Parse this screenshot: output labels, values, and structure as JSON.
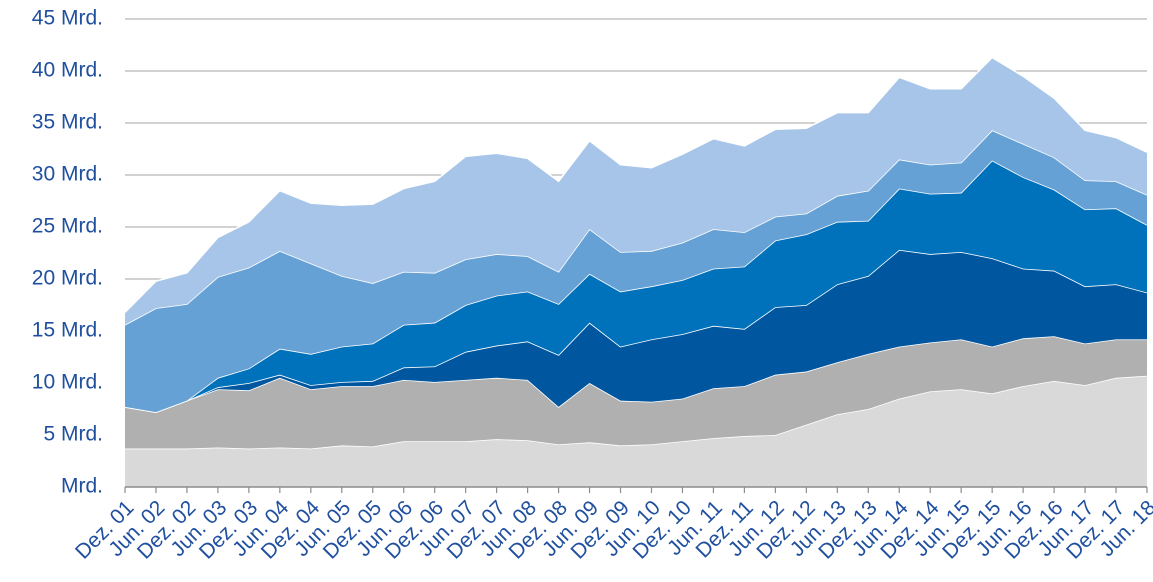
{
  "chart_data": {
    "type": "stacked-area",
    "categories": [
      "Dez. 01",
      "Jun. 02",
      "Dez. 02",
      "Jun. 03",
      "Dez. 03",
      "Jun. 04",
      "Dez. 04",
      "Jun. 05",
      "Dez. 05",
      "Jun. 06",
      "Dez. 06",
      "Jun. 07",
      "Dez. 07",
      "Jun. 08",
      "Dez. 08",
      "Jun. 09",
      "Dez. 09",
      "Jun. 10",
      "Dez. 10",
      "Jun. 11",
      "Dez. 11",
      "Jun. 12",
      "Dez. 12",
      "Jun. 13",
      "Dez. 13",
      "Jun. 14",
      "Dez. 14",
      "Jun. 15",
      "Dez. 15",
      "Jun. 16",
      "Dez. 16",
      "Jun. 17",
      "Dez. 17",
      "Jun. 18"
    ],
    "series": [
      {
        "color": "#d9d9d9",
        "values": [
          3.7,
          3.7,
          3.7,
          3.8,
          3.7,
          3.8,
          3.7,
          4.0,
          3.9,
          4.4,
          4.4,
          4.4,
          4.6,
          4.5,
          4.1,
          4.3,
          4.0,
          4.1,
          4.4,
          4.7,
          4.9,
          5.0,
          6.0,
          7.0,
          7.5,
          8.5,
          9.2,
          9.4,
          9.0,
          9.7,
          10.2,
          9.8,
          10.5,
          10.7
        ]
      },
      {
        "color": "#b0b0b0",
        "values": [
          4.0,
          3.5,
          4.6,
          5.6,
          5.6,
          6.7,
          5.7,
          5.7,
          5.8,
          5.9,
          5.7,
          5.9,
          5.9,
          5.8,
          3.6,
          5.7,
          4.3,
          4.1,
          4.1,
          4.8,
          4.8,
          5.8,
          5.1,
          5.0,
          5.3,
          5.0,
          4.7,
          4.8,
          4.5,
          4.6,
          4.3,
          4.0,
          3.7,
          3.5
        ]
      },
      {
        "color": "#0057a0",
        "values": [
          0,
          0,
          0,
          0.2,
          0.7,
          0.3,
          0.4,
          0.4,
          0.5,
          1.2,
          1.5,
          2.7,
          3.1,
          3.7,
          5.0,
          5.8,
          5.2,
          6.0,
          6.2,
          6.0,
          5.5,
          6.5,
          6.4,
          7.5,
          7.5,
          9.3,
          8.5,
          8.4,
          8.5,
          6.7,
          6.3,
          5.5,
          5.3,
          4.5
        ]
      },
      {
        "color": "#0072bb",
        "values": [
          0,
          0,
          0,
          0.9,
          1.4,
          2.5,
          3.0,
          3.4,
          3.6,
          4.1,
          4.2,
          4.5,
          4.8,
          4.8,
          4.9,
          4.7,
          5.3,
          5.1,
          5.2,
          5.5,
          6.0,
          6.4,
          6.8,
          6.0,
          5.3,
          5.9,
          5.8,
          5.7,
          9.4,
          8.8,
          7.8,
          7.4,
          7.3,
          6.5
        ]
      },
      {
        "color": "#66a1d6",
        "values": [
          7.9,
          10.0,
          9.3,
          9.7,
          9.7,
          9.4,
          8.7,
          6.8,
          5.8,
          5.1,
          4.8,
          4.4,
          4.0,
          3.4,
          3.1,
          4.3,
          3.8,
          3.4,
          3.6,
          3.8,
          3.3,
          2.3,
          2.0,
          2.5,
          2.9,
          2.8,
          2.8,
          2.9,
          2.9,
          3.2,
          3.1,
          2.8,
          2.6,
          2.9
        ]
      },
      {
        "color": "#a7c5e8",
        "values": [
          1.2,
          2.6,
          3.0,
          3.8,
          4.4,
          5.8,
          5.8,
          6.8,
          7.6,
          8.0,
          8.8,
          9.9,
          9.7,
          9.4,
          8.7,
          8.5,
          8.4,
          8.0,
          8.5,
          8.7,
          8.3,
          8.4,
          8.2,
          8.0,
          7.5,
          7.9,
          7.3,
          7.1,
          7.0,
          6.5,
          5.7,
          4.8,
          4.2,
          4.1
        ]
      }
    ],
    "ylim": [
      0,
      45
    ],
    "yticks": [
      {
        "value": 0,
        "label": "Mrd."
      },
      {
        "value": 5,
        "label": "5 Mrd."
      },
      {
        "value": 10,
        "label": "10 Mrd."
      },
      {
        "value": 15,
        "label": "15 Mrd."
      },
      {
        "value": 20,
        "label": "20 Mrd."
      },
      {
        "value": 25,
        "label": "25 Mrd."
      },
      {
        "value": 30,
        "label": "30 Mrd."
      },
      {
        "value": 35,
        "label": "35 Mrd."
      },
      {
        "value": 40,
        "label": "40 Mrd."
      },
      {
        "value": 45,
        "label": "45 Mrd."
      }
    ],
    "grid": true
  }
}
